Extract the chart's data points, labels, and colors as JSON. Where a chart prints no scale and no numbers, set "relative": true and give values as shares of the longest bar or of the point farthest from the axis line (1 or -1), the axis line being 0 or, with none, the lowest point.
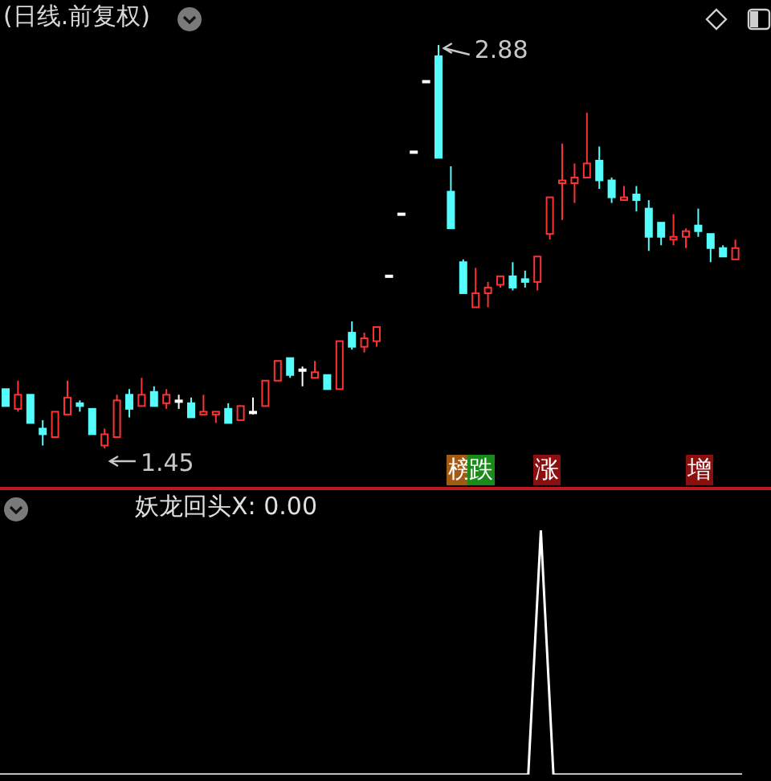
{
  "chart_data": [
    {
      "type": "candlestick",
      "title": "(日线.前复权)",
      "categories": [
        null,
        null,
        null,
        null,
        null,
        null,
        null,
        null,
        null,
        null,
        null,
        null,
        null,
        null,
        null,
        null,
        null,
        null,
        null,
        null,
        null,
        null,
        null,
        null,
        null,
        null,
        null,
        null,
        null,
        null,
        null,
        null,
        null,
        null,
        null,
        null,
        null,
        null,
        null,
        null,
        null,
        null,
        null,
        null,
        null,
        null,
        null,
        null,
        null,
        null,
        null,
        null,
        null,
        null,
        null,
        null,
        null,
        null,
        null,
        null
      ],
      "ohlc": [
        [
          1.66,
          1.66,
          1.6,
          1.6
        ],
        [
          1.59,
          1.69,
          1.58,
          1.64
        ],
        [
          1.64,
          1.64,
          1.54,
          1.54
        ],
        [
          1.52,
          1.55,
          1.46,
          1.5
        ],
        [
          1.49,
          1.58,
          1.49,
          1.58
        ],
        [
          1.57,
          1.69,
          1.57,
          1.63
        ],
        [
          1.61,
          1.62,
          1.58,
          1.6
        ],
        [
          1.59,
          1.59,
          1.5,
          1.5
        ],
        [
          1.46,
          1.52,
          1.45,
          1.5
        ],
        [
          1.49,
          1.64,
          1.49,
          1.62
        ],
        [
          1.64,
          1.66,
          1.56,
          1.59
        ],
        [
          1.6,
          1.7,
          1.6,
          1.64
        ],
        [
          1.65,
          1.67,
          1.6,
          1.6
        ],
        [
          1.61,
          1.66,
          1.59,
          1.64
        ],
        [
          1.62,
          1.64,
          1.59,
          1.62
        ],
        [
          1.61,
          1.63,
          1.56,
          1.56
        ],
        [
          1.57,
          1.64,
          1.57,
          1.58
        ],
        [
          1.57,
          1.58,
          1.54,
          1.58
        ],
        [
          1.59,
          1.61,
          1.54,
          1.54
        ],
        [
          1.55,
          1.6,
          1.55,
          1.6
        ],
        [
          1.58,
          1.63,
          1.57,
          1.58
        ],
        [
          1.6,
          1.69,
          1.6,
          1.69
        ],
        [
          1.69,
          1.76,
          1.69,
          1.76
        ],
        [
          1.77,
          1.77,
          1.7,
          1.71
        ],
        [
          1.73,
          1.74,
          1.67,
          1.73
        ],
        [
          1.7,
          1.76,
          1.7,
          1.72
        ],
        [
          1.71,
          1.71,
          1.66,
          1.66
        ],
        [
          1.66,
          1.83,
          1.66,
          1.83
        ],
        [
          1.86,
          1.9,
          1.8,
          1.81
        ],
        [
          1.81,
          1.86,
          1.79,
          1.84
        ],
        [
          1.83,
          1.88,
          1.81,
          1.88
        ],
        [
          2.06,
          2.06,
          2.06,
          2.06
        ],
        [
          2.28,
          2.28,
          2.28,
          2.28
        ],
        [
          2.5,
          2.5,
          2.5,
          2.5
        ],
        [
          2.75,
          2.75,
          2.75,
          2.75
        ],
        [
          2.84,
          2.88,
          2.48,
          2.48
        ],
        [
          2.36,
          2.45,
          2.23,
          2.23
        ],
        [
          2.11,
          2.12,
          2.0,
          2.0
        ],
        [
          1.95,
          2.09,
          1.95,
          2.0
        ],
        [
          2.0,
          2.04,
          1.95,
          2.02
        ],
        [
          2.03,
          2.06,
          2.02,
          2.06
        ],
        [
          2.06,
          2.11,
          2.01,
          2.02
        ],
        [
          2.05,
          2.08,
          2.02,
          2.04
        ],
        [
          2.04,
          2.13,
          2.01,
          2.13
        ],
        [
          2.21,
          2.34,
          2.19,
          2.34
        ],
        [
          2.39,
          2.53,
          2.26,
          2.4
        ],
        [
          2.39,
          2.46,
          2.32,
          2.41
        ],
        [
          2.41,
          2.64,
          2.41,
          2.46
        ],
        [
          2.47,
          2.52,
          2.37,
          2.4
        ],
        [
          2.4,
          2.41,
          2.32,
          2.34
        ],
        [
          2.33,
          2.38,
          2.33,
          2.34
        ],
        [
          2.35,
          2.38,
          2.29,
          2.33
        ],
        [
          2.3,
          2.33,
          2.15,
          2.2
        ],
        [
          2.25,
          2.25,
          2.17,
          2.2
        ],
        [
          2.19,
          2.28,
          2.17,
          2.2
        ],
        [
          2.2,
          2.23,
          2.16,
          2.22
        ],
        [
          2.24,
          2.3,
          2.2,
          2.22
        ],
        [
          2.21,
          2.21,
          2.11,
          2.16
        ],
        [
          2.16,
          2.17,
          2.13,
          2.13
        ],
        [
          2.12,
          2.19,
          2.12,
          2.16
        ]
      ],
      "colors": [
        "#54fcfc",
        "#ff3232",
        "#54fcfc",
        "#54fcfc",
        "#ff3232",
        "#ff3232",
        "#54fcfc",
        "#54fcfc",
        "#ff3232",
        "#ff3232",
        "#54fcfc",
        "#ff3232",
        "#54fcfc",
        "#ff3232",
        "#ffffff",
        "#54fcfc",
        "#ff3232",
        "#ff3232",
        "#54fcfc",
        "#ff3232",
        "#ffffff",
        "#ff3232",
        "#ff3232",
        "#54fcfc",
        "#ffffff",
        "#ff3232",
        "#54fcfc",
        "#ff3232",
        "#54fcfc",
        "#ff3232",
        "#ff3232",
        "#ffffff",
        "#ffffff",
        "#ffffff",
        "#ffffff",
        "#54fcfc",
        "#54fcfc",
        "#54fcfc",
        "#ff3232",
        "#ff3232",
        "#ff3232",
        "#54fcfc",
        "#54fcfc",
        "#ff3232",
        "#ff3232",
        "#ff3232",
        "#ff3232",
        "#ff3232",
        "#54fcfc",
        "#54fcfc",
        "#ff3232",
        "#54fcfc",
        "#54fcfc",
        "#54fcfc",
        "#ff3232",
        "#ff3232",
        "#54fcfc",
        "#54fcfc",
        "#54fcfc",
        "#ff3232"
      ],
      "annotations": [
        "2.88",
        "1.45",
        "榜",
        "跌",
        "涨",
        "增"
      ]
    },
    {
      "type": "line",
      "subtitle": "妖龙回头X: 0.00",
      "relative": true,
      "color": "#ffffff",
      "categories": [
        null,
        null,
        null,
        null,
        null,
        null,
        null,
        null,
        null,
        null,
        null,
        null,
        null,
        null,
        null,
        null,
        null,
        null,
        null,
        null,
        null,
        null,
        null,
        null,
        null,
        null,
        null,
        null,
        null,
        null,
        null,
        null,
        null,
        null,
        null,
        null,
        null,
        null,
        null,
        null,
        null,
        null,
        null,
        null,
        null,
        null,
        null,
        null,
        null,
        null,
        null,
        null,
        null,
        null,
        null,
        null,
        null,
        null,
        null,
        null
      ],
      "values": [
        0,
        0,
        0,
        0,
        0,
        0,
        0,
        0,
        0,
        0,
        0,
        0,
        0,
        0,
        0,
        0,
        0,
        0,
        0,
        0,
        0,
        0,
        0,
        0,
        0,
        0,
        0,
        0,
        0,
        0,
        0,
        0,
        0,
        0,
        0,
        0,
        0,
        0,
        0,
        0,
        0,
        0,
        0,
        1,
        0,
        0,
        0,
        0,
        0,
        0,
        0,
        0,
        0,
        0,
        0,
        0,
        0,
        0,
        0,
        0
      ]
    }
  ]
}
